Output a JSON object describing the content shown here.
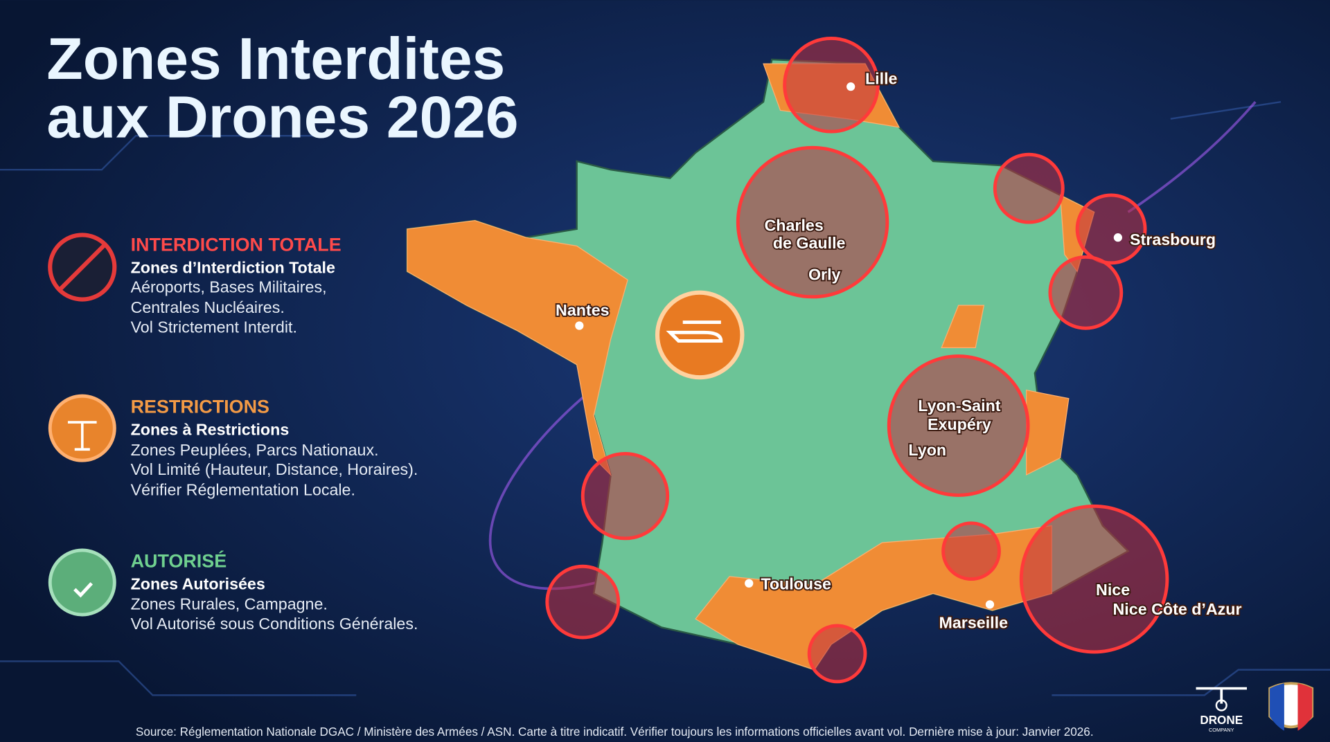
{
  "title": [
    "Zones Interdites",
    "aux Drones 2026"
  ],
  "legend": [
    {
      "heading": "INTERDICTION TOTALE",
      "subtitle": "Zones d’Interdiction Totale",
      "lines": [
        "Aéroports, Bases Militaires,",
        "Centrales Nucléaires.",
        "Vol Strictement Interdit."
      ]
    },
    {
      "heading": "RESTRICTIONS",
      "subtitle": "Zones à Restrictions",
      "lines": [
        "Zones Peuplées, Parcs Nationaux.",
        "Vol Limité (Hauteur, Distance, Horaires).",
        "Vérifier Réglementation Locale."
      ]
    },
    {
      "heading": "AUTORISÉ",
      "subtitle": "Zones Autorisées",
      "lines": [
        "Zones Rurales, Campagne.",
        "Vol Autorisé sous Conditions Générales."
      ]
    }
  ],
  "cities": {
    "lille": "Lille",
    "cdg": [
      "Charles",
      "de Gaulle"
    ],
    "orly": "Orly",
    "strasbourg": "Strasbourg",
    "nantes": "Nantes",
    "lys": [
      "Lyon-Saint",
      "Exupéry"
    ],
    "lyon": "Lyon",
    "toulouse": "Toulouse",
    "marseille": "Marseille",
    "nice": "Nice",
    "nca": "Nice Côte d’Azur"
  },
  "source": "Source: Réglementation Nationale DGAC / Ministère des Armées / ASN. Carte à titre indicatif. Vérifier toujours les informations officielles avant vol. Dernière mise à jour: Janvier 2026.",
  "logo": {
    "name": "DRONE",
    "tagline": "COMPANY"
  }
}
